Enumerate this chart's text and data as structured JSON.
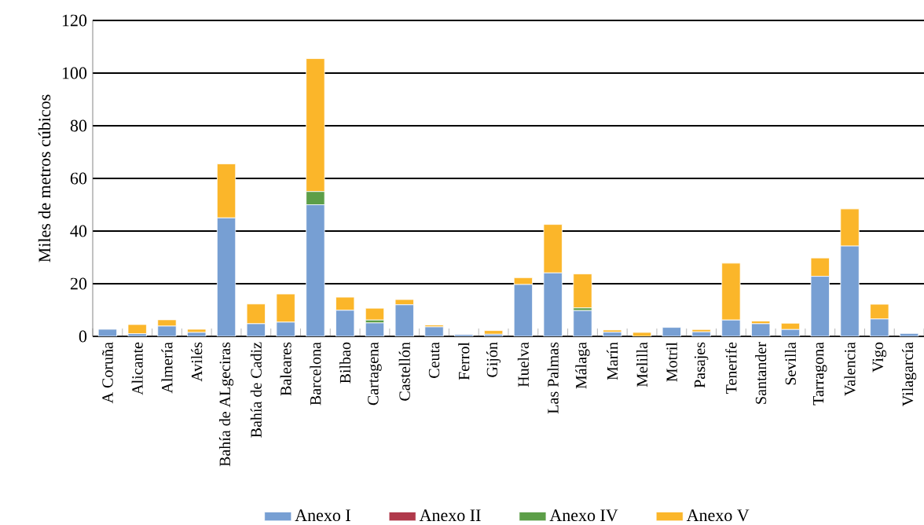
{
  "chart_data": {
    "type": "bar",
    "stacked": true,
    "ylabel": "Miles de metros cúbicos",
    "categories": [
      "A Coruña",
      "Alicante",
      "Almería",
      "Avilés",
      "Bahía de ALgeciras",
      "Bahía de Cadiz",
      "Baleares",
      "Barcelona",
      "Bilbao",
      "Cartagena",
      "Castellón",
      "Ceuta",
      "Ferrol",
      "Gijón",
      "Huelva",
      "Las Palmas",
      "Málaga",
      "Marín",
      "Melilla",
      "Motril",
      "Pasajes",
      "Tenerife",
      "Santander",
      "Sevilla",
      "Tarragona",
      "Valencia",
      "Vigo",
      "Vilagarcía"
    ],
    "series": [
      {
        "name": "Anexo I",
        "color": "#779fd3",
        "values": [
          2.7,
          1,
          3.9,
          1.5,
          45,
          4.8,
          5.4,
          50,
          9.9,
          5.1,
          12,
          3.6,
          0.7,
          0.8,
          19.7,
          24.1,
          9.8,
          1.6,
          0,
          3.4,
          1.7,
          6.2,
          4.8,
          2.6,
          22.8,
          34.3,
          6.6,
          1.1
        ]
      },
      {
        "name": "Anexo II",
        "color": "#b0394b",
        "values": [
          0,
          0,
          0,
          0,
          0,
          0,
          0,
          0,
          0,
          0,
          0,
          0,
          0,
          0,
          0,
          0,
          0,
          0,
          0,
          0,
          0,
          0,
          0,
          0,
          0,
          0,
          0,
          0
        ]
      },
      {
        "name": "Anexo IV",
        "color": "#5c9e48",
        "values": [
          0,
          0,
          0,
          0,
          0,
          0,
          0,
          5,
          0,
          1.1,
          0,
          0,
          0,
          0,
          0,
          0,
          1,
          0,
          0,
          0,
          0,
          0,
          0,
          0,
          0,
          0,
          0,
          0
        ]
      },
      {
        "name": "Anexo V",
        "color": "#fbb62a",
        "values": [
          0,
          3.5,
          2.4,
          1.2,
          20.5,
          7.5,
          10.7,
          50.5,
          5,
          4.5,
          2,
          0.7,
          0,
          1.4,
          2.6,
          18.4,
          12.9,
          0.8,
          1.5,
          0,
          0.9,
          21.6,
          1,
          2.4,
          7,
          14.1,
          5.6,
          0
        ]
      }
    ],
    "ylim": [
      0,
      120
    ],
    "yticks": [
      0,
      20,
      40,
      60,
      80,
      100,
      120
    ],
    "grid": "y",
    "legend": "bottom"
  }
}
